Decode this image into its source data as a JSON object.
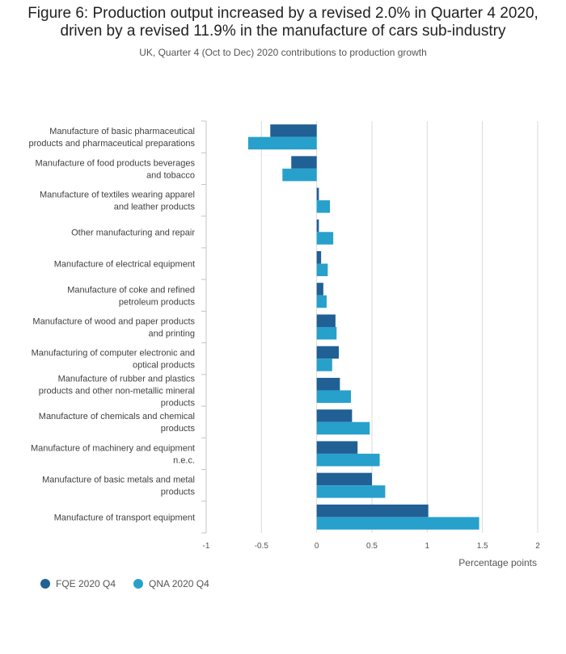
{
  "header": {
    "title_line1": "Figure 6: Production output increased by a revised 2.0% in Quarter 4 2020,",
    "title_line2": "driven by a revised 11.9% in the manufacture of cars sub-industry",
    "subtitle": "UK, Quarter 4 (Oct to Dec) 2020 contributions to production growth"
  },
  "colors": {
    "fqe": "#206095",
    "qna": "#27a0cc",
    "grid": "#d9d9d9",
    "axis": "#c4c4c4"
  },
  "chart_data": {
    "type": "bar",
    "orientation": "horizontal",
    "title": "Figure 6: Production output increased by a revised 2.0% in Quarter 4 2020, driven by a revised 11.9% in the manufacture of cars sub-industry",
    "subtitle": "UK, Quarter 4 (Oct to Dec) 2020 contributions to production growth",
    "xlabel": "Percentage points",
    "ylabel": "",
    "xlim": [
      -1,
      2
    ],
    "xticks": [
      "-1",
      "-0.5",
      "0",
      "0.5",
      "1",
      "1.5",
      "2"
    ],
    "xtick_values": [
      -1,
      -0.5,
      0,
      0.5,
      1,
      1.5,
      2
    ],
    "grid": true,
    "legend_position": "bottom-left",
    "categories": [
      [
        "Manufacture of basic pharmaceutical",
        "products and pharmaceutical preparations"
      ],
      [
        "Manufacture of food products beverages",
        "and tobacco"
      ],
      [
        "Manufacture of textiles wearing apparel",
        "and leather products"
      ],
      [
        "Other manufacturing and repair"
      ],
      [
        "Manufacture of electrical equipment"
      ],
      [
        "Manufacture of coke and refined",
        "petroleum products"
      ],
      [
        "Manufacture of wood and paper products",
        "and printing"
      ],
      [
        "Manufacturing of computer electronic and",
        "optical products"
      ],
      [
        "Manufacture of rubber and plastics",
        "products and other non-metallic mineral",
        "products"
      ],
      [
        "Manufacture of chemicals and chemical",
        "products"
      ],
      [
        "Manufacture of machinery and equipment",
        "n.e.c."
      ],
      [
        "Manufacture of basic metals and metal",
        "products"
      ],
      [
        "Manufacture of transport equipment"
      ]
    ],
    "series": [
      {
        "name": "FQE 2020 Q4",
        "color": "#206095",
        "values": [
          -0.42,
          -0.23,
          0.02,
          0.02,
          0.04,
          0.06,
          0.17,
          0.2,
          0.21,
          0.32,
          0.37,
          0.5,
          1.01
        ]
      },
      {
        "name": "QNA 2020 Q4",
        "color": "#27a0cc",
        "values": [
          -0.62,
          -0.31,
          0.12,
          0.15,
          0.1,
          0.09,
          0.18,
          0.14,
          0.31,
          0.48,
          0.57,
          0.62,
          1.47
        ]
      }
    ]
  }
}
